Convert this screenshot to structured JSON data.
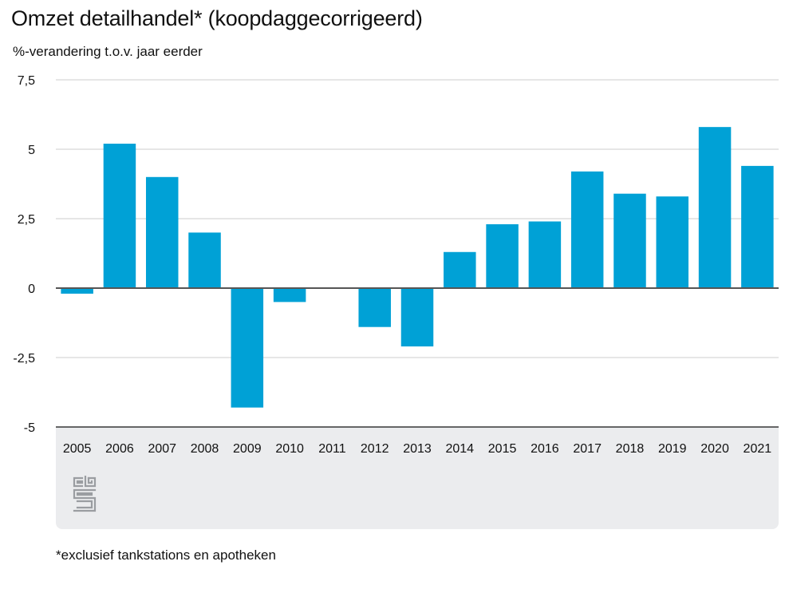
{
  "chart_data": {
    "type": "bar",
    "title": "Omzet detailhandel* (koopdaggecorrigeerd)",
    "subtitle": "%-verandering t.o.v. jaar eerder",
    "footnote": "*exclusief tankstations en apotheken",
    "categories": [
      "2005",
      "2006",
      "2007",
      "2008",
      "2009",
      "2010",
      "2011",
      "2012",
      "2013",
      "2014",
      "2015",
      "2016",
      "2017",
      "2018",
      "2019",
      "2020",
      "2021"
    ],
    "values": [
      -0.2,
      5.2,
      4.0,
      2.0,
      -4.3,
      -0.5,
      0.0,
      -1.4,
      -2.1,
      1.3,
      2.3,
      2.4,
      4.2,
      3.4,
      3.3,
      5.8,
      4.4
    ],
    "ylim": [
      -5,
      7.5
    ],
    "yticks": [
      7.5,
      5,
      2.5,
      0,
      -2.5,
      -5
    ],
    "ytick_labels": [
      "7,5",
      "5",
      "2,5",
      "0",
      "-2,5",
      "-5"
    ],
    "grid": true,
    "bar_color": "#00a1d6",
    "grid_color": "#cccccc",
    "zero_line_color": "#555555"
  },
  "branding": {
    "logo_icon": "cbs-logo-icon",
    "logo_color": "#9a9da1"
  }
}
